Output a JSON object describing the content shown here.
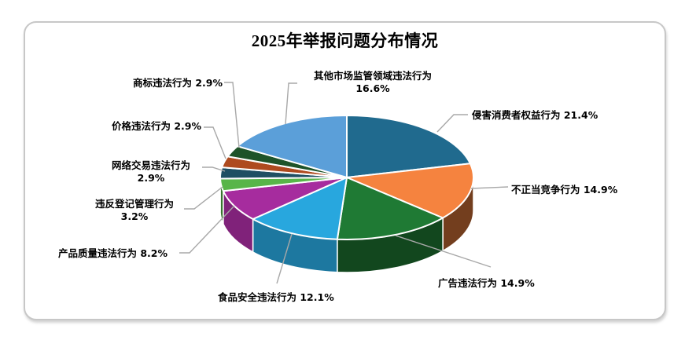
{
  "page": {
    "background": "#FFFFFF"
  },
  "card": {
    "border_color": "#C7C7C7"
  },
  "chart_data": {
    "type": "pie",
    "style": "3d-exploded-look",
    "title": "2025年举报问题分布情况",
    "legend_position": "none",
    "labels": "outside-with-leader-lines",
    "leader_line_color": "#A8A8A8",
    "start_angle_deg": -90,
    "direction": "clockwise",
    "total": 100.0,
    "unit": "%",
    "slices": [
      {
        "name": "侵害消费者权益行为",
        "value": 21.4,
        "pct_text": "21.4%",
        "color": "#206A8E",
        "label": "侵害消费者权益行为 21.4%"
      },
      {
        "name": "不正当竞争行为",
        "value": 14.9,
        "pct_text": "14.9%",
        "color": "#F5833F",
        "label": "不正当竞争行为 14.9%"
      },
      {
        "name": "广告违法行为",
        "value": 14.9,
        "pct_text": "14.9%",
        "color": "#1F7A34",
        "label": "广告违法行为 14.9%"
      },
      {
        "name": "食品安全违法行为",
        "value": 12.1,
        "pct_text": "12.1%",
        "color": "#28A7DE",
        "label": "食品安全违法行为 12.1%"
      },
      {
        "name": "产品质量违法行为",
        "value": 8.2,
        "pct_text": "8.2%",
        "color": "#A62C9E",
        "label": "产品质量违法行为 8.2%"
      },
      {
        "name": "违反登记管理行为",
        "value": 3.2,
        "pct_text": "3.2%",
        "color": "#58B549",
        "label": "违反登记管理行为 3.2%"
      },
      {
        "name": "网络交易违法行为",
        "value": 2.9,
        "pct_text": "2.9%",
        "color": "#1F4F63",
        "label": "网络交易违法行为 2.9%"
      },
      {
        "name": "价格违法行为",
        "value": 2.9,
        "pct_text": "2.9%",
        "color": "#AE4A1F",
        "label": "价格违法行为 2.9%"
      },
      {
        "name": "商标违法行为",
        "value": 2.9,
        "pct_text": "2.9%",
        "color": "#1E5329",
        "label": "商标违法行为 2.9%"
      },
      {
        "name": "其他市场监管领域违法行为",
        "value": 16.6,
        "pct_text": "16.6%",
        "color": "#5B9FD9",
        "label": "其他市场监管领域违法行为 16.6%"
      }
    ]
  }
}
